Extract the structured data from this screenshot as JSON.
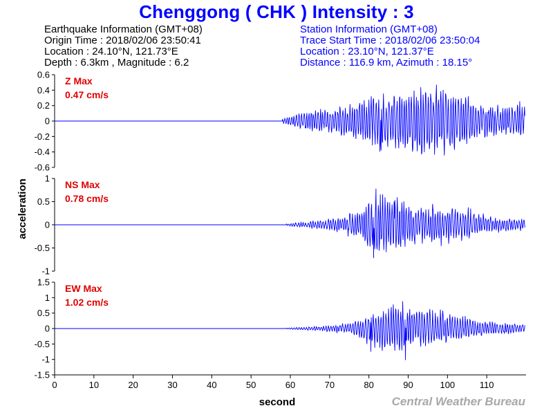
{
  "title": "Chenggong ( CHK ) Intensity : 3",
  "earthquake": {
    "heading": "Earthquake Information  (GMT+08)",
    "origin_time": "Origin Time : 2018/02/06 23:50:41",
    "location": "Location : 24.10°N, 121.73°E",
    "depth_mag": "Depth : 6.3km , Magnitude : 6.2"
  },
  "station": {
    "heading": "Station Information  (GMT+08)",
    "trace_start": "Trace Start Time : 2018/02/06 23:50:04",
    "location": "Location : 23.10°N, 121.37°E",
    "distance": "Distance : 116.9 km, Azimuth : 18.15°"
  },
  "credit": "Central Weather Bureau",
  "colors": {
    "title": "#0000ff",
    "trace": "#0000ff",
    "max_label": "#e00000",
    "credit": "#a8a8a8"
  },
  "chart_data": {
    "type": "line",
    "xlabel": "second",
    "ylabel": "acceleration",
    "xlim": [
      0,
      120
    ],
    "xticks": [
      0,
      10,
      20,
      30,
      40,
      50,
      60,
      70,
      80,
      90,
      100,
      110
    ],
    "grid": false,
    "panels": [
      {
        "component": "Z",
        "max_label": "Z Max",
        "max_value": "0.47 cm/s",
        "ylim": [
          -0.6,
          0.6
        ],
        "yticks": [
          "0.6",
          "0.4",
          "0.2",
          "0",
          "-0.2",
          "-0.4",
          "-0.6"
        ],
        "yvalues": [
          0.6,
          0.4,
          0.2,
          0,
          -0.2,
          -0.4,
          -0.6
        ],
        "onset_s": 58,
        "envelope": [
          [
            58,
            0.03
          ],
          [
            62,
            0.1
          ],
          [
            68,
            0.15
          ],
          [
            74,
            0.18
          ],
          [
            78,
            0.25
          ],
          [
            82,
            0.35
          ],
          [
            86,
            0.33
          ],
          [
            90,
            0.38
          ],
          [
            94,
            0.42
          ],
          [
            98,
            0.45
          ],
          [
            102,
            0.35
          ],
          [
            106,
            0.28
          ],
          [
            110,
            0.2
          ],
          [
            114,
            0.18
          ],
          [
            118,
            0.22
          ],
          [
            120,
            0.22
          ]
        ],
        "peaks": [
          [
            97.2,
            0.47
          ],
          [
            93.4,
            -0.43
          ],
          [
            83.1,
            -0.38
          ],
          [
            80.6,
            0.32
          ]
        ]
      },
      {
        "component": "NS",
        "max_label": "NS Max",
        "max_value": "0.78 cm/s",
        "ylim": [
          -1,
          1
        ],
        "yticks": [
          "1",
          "0.5",
          "0",
          "-0.5",
          "-1"
        ],
        "yvalues": [
          1,
          0.5,
          0,
          -0.5,
          -1
        ],
        "onset_s": 59,
        "envelope": [
          [
            59,
            0.02
          ],
          [
            62,
            0.05
          ],
          [
            68,
            0.1
          ],
          [
            74,
            0.18
          ],
          [
            78,
            0.35
          ],
          [
            82,
            0.6
          ],
          [
            86,
            0.55
          ],
          [
            90,
            0.45
          ],
          [
            94,
            0.35
          ],
          [
            98,
            0.4
          ],
          [
            102,
            0.35
          ],
          [
            106,
            0.32
          ],
          [
            110,
            0.18
          ],
          [
            114,
            0.15
          ],
          [
            118,
            0.12
          ],
          [
            120,
            0.12
          ]
        ],
        "peaks": [
          [
            81.8,
            0.78
          ],
          [
            81.2,
            -0.72
          ],
          [
            86.4,
            0.5
          ],
          [
            96.2,
            0.45
          ]
        ]
      },
      {
        "component": "EW",
        "max_label": "EW Max",
        "max_value": "1.02 cm/s",
        "ylim": [
          -1.5,
          1.5
        ],
        "yticks": [
          "1.5",
          "1",
          "0.5",
          "0",
          "-0.5",
          "-1",
          "-1.5"
        ],
        "yvalues": [
          1.5,
          1,
          0.5,
          0,
          -0.5,
          -1,
          -1.5
        ],
        "onset_s": 59,
        "envelope": [
          [
            59,
            0.02
          ],
          [
            64,
            0.05
          ],
          [
            70,
            0.1
          ],
          [
            76,
            0.2
          ],
          [
            80,
            0.5
          ],
          [
            84,
            0.7
          ],
          [
            88,
            0.75
          ],
          [
            92,
            0.65
          ],
          [
            96,
            0.55
          ],
          [
            100,
            0.5
          ],
          [
            104,
            0.4
          ],
          [
            108,
            0.25
          ],
          [
            112,
            0.2
          ],
          [
            116,
            0.15
          ],
          [
            120,
            0.15
          ]
        ],
        "peaks": [
          [
            89.3,
            -1.02
          ],
          [
            88.6,
            0.88
          ],
          [
            80.5,
            -0.75
          ],
          [
            86.2,
            0.78
          ]
        ]
      }
    ]
  }
}
